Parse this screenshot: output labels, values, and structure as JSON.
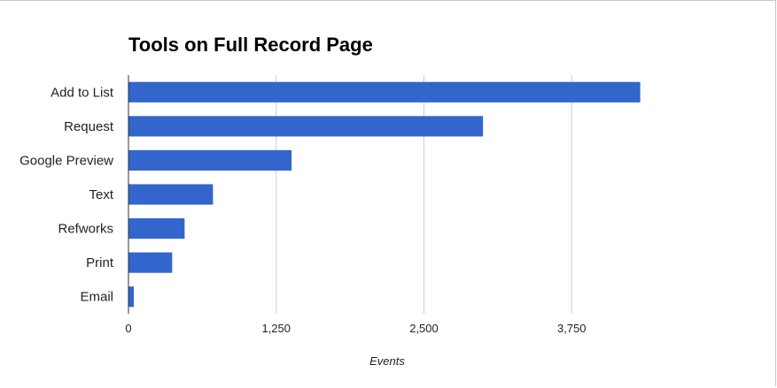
{
  "chart_data": {
    "type": "bar",
    "orientation": "horizontal",
    "title": "Tools on Full Record Page",
    "categories": [
      "Add to List",
      "Request",
      "Google Preview",
      "Text",
      "Refworks",
      "Print",
      "Email"
    ],
    "values": [
      4330,
      3000,
      1380,
      715,
      475,
      370,
      45
    ],
    "xlabel": "Events",
    "ylabel": "",
    "xlim": [
      0,
      5000
    ],
    "ticks": [
      0,
      1250,
      2500,
      3750
    ],
    "tick_labels": [
      "0",
      "1,250",
      "2,500",
      "3,750"
    ],
    "grid": true,
    "legend": "none",
    "bar_color": "#3366cc",
    "grid_color": "#cccccc"
  }
}
